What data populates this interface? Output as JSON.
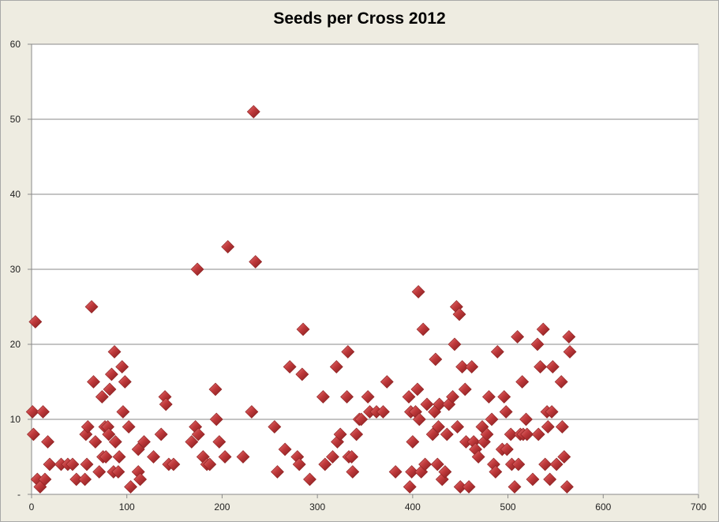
{
  "chart_data": {
    "type": "scatter",
    "title": "Seeds per Cross 2012",
    "xlabel": "",
    "ylabel": "",
    "xlim": [
      0,
      700
    ],
    "ylim": [
      0,
      60
    ],
    "x_ticks": [
      0,
      100,
      200,
      300,
      400,
      500,
      600,
      700
    ],
    "y_ticks": [
      0,
      10,
      20,
      30,
      40,
      50,
      60
    ],
    "y_tick_labels": [
      "-",
      "10",
      "20",
      "30",
      "40",
      "50",
      "60"
    ],
    "grid": "horizontal",
    "legend": "none",
    "marker": "diamond",
    "marker_color": "#c0393b",
    "plot_background": "#ffffff",
    "points": [
      [
        1,
        11
      ],
      [
        2,
        8
      ],
      [
        4,
        23
      ],
      [
        6,
        2
      ],
      [
        9,
        1
      ],
      [
        12,
        11
      ],
      [
        14,
        2
      ],
      [
        17,
        7
      ],
      [
        19,
        4
      ],
      [
        31,
        4
      ],
      [
        38,
        4
      ],
      [
        43,
        4
      ],
      [
        47,
        2
      ],
      [
        56,
        2
      ],
      [
        57,
        8
      ],
      [
        58,
        4
      ],
      [
        59,
        9
      ],
      [
        63,
        25
      ],
      [
        65,
        15
      ],
      [
        67,
        7
      ],
      [
        71,
        3
      ],
      [
        74,
        13
      ],
      [
        75,
        5
      ],
      [
        77,
        9
      ],
      [
        78,
        5
      ],
      [
        80,
        9
      ],
      [
        81,
        8
      ],
      [
        82,
        14
      ],
      [
        84,
        16
      ],
      [
        86,
        3
      ],
      [
        87,
        19
      ],
      [
        88,
        7
      ],
      [
        91,
        3
      ],
      [
        92,
        5
      ],
      [
        95,
        17
      ],
      [
        96,
        11
      ],
      [
        98,
        15
      ],
      [
        102,
        9
      ],
      [
        104,
        1
      ],
      [
        112,
        6
      ],
      [
        112,
        3
      ],
      [
        114,
        2
      ],
      [
        118,
        7
      ],
      [
        128,
        5
      ],
      [
        136,
        8
      ],
      [
        140,
        13
      ],
      [
        141,
        12
      ],
      [
        144,
        4
      ],
      [
        149,
        4
      ],
      [
        168,
        7
      ],
      [
        172,
        9
      ],
      [
        174,
        30
      ],
      [
        175,
        8
      ],
      [
        180,
        5
      ],
      [
        184,
        4
      ],
      [
        187,
        4
      ],
      [
        193,
        14
      ],
      [
        194,
        10
      ],
      [
        197,
        7
      ],
      [
        203,
        5
      ],
      [
        206,
        33
      ],
      [
        222,
        5
      ],
      [
        231,
        11
      ],
      [
        233,
        51
      ],
      [
        235,
        31
      ],
      [
        255,
        9
      ],
      [
        258,
        3
      ],
      [
        266,
        6
      ],
      [
        271,
        17
      ],
      [
        279,
        5
      ],
      [
        281,
        4
      ],
      [
        284,
        16
      ],
      [
        285,
        22
      ],
      [
        292,
        2
      ],
      [
        306,
        13
      ],
      [
        308,
        4
      ],
      [
        316,
        5
      ],
      [
        320,
        17
      ],
      [
        321,
        7
      ],
      [
        324,
        8
      ],
      [
        331,
        13
      ],
      [
        332,
        19
      ],
      [
        333,
        5
      ],
      [
        336,
        5
      ],
      [
        337,
        3
      ],
      [
        341,
        8
      ],
      [
        344,
        10
      ],
      [
        346,
        10
      ],
      [
        353,
        13
      ],
      [
        355,
        11
      ],
      [
        362,
        11
      ],
      [
        369,
        11
      ],
      [
        373,
        15
      ],
      [
        382,
        3
      ],
      [
        396,
        13
      ],
      [
        397,
        1
      ],
      [
        398,
        11
      ],
      [
        399,
        3
      ],
      [
        400,
        7
      ],
      [
        403,
        11
      ],
      [
        405,
        14
      ],
      [
        406,
        27
      ],
      [
        407,
        10
      ],
      [
        409,
        3
      ],
      [
        411,
        22
      ],
      [
        413,
        4
      ],
      [
        415,
        12
      ],
      [
        421,
        8
      ],
      [
        423,
        11
      ],
      [
        424,
        18
      ],
      [
        426,
        4
      ],
      [
        427,
        9
      ],
      [
        428,
        12
      ],
      [
        431,
        2
      ],
      [
        434,
        3
      ],
      [
        436,
        8
      ],
      [
        438,
        12
      ],
      [
        442,
        13
      ],
      [
        444,
        20
      ],
      [
        446,
        25
      ],
      [
        447,
        9
      ],
      [
        449,
        24
      ],
      [
        450,
        1
      ],
      [
        452,
        17
      ],
      [
        455,
        14
      ],
      [
        456,
        7
      ],
      [
        459,
        1
      ],
      [
        462,
        17
      ],
      [
        464,
        7
      ],
      [
        466,
        6
      ],
      [
        469,
        5
      ],
      [
        473,
        9
      ],
      [
        475,
        7
      ],
      [
        478,
        8
      ],
      [
        480,
        13
      ],
      [
        483,
        10
      ],
      [
        485,
        4
      ],
      [
        487,
        3
      ],
      [
        489,
        19
      ],
      [
        494,
        6
      ],
      [
        496,
        13
      ],
      [
        498,
        11
      ],
      [
        499,
        6
      ],
      [
        503,
        8
      ],
      [
        504,
        4
      ],
      [
        507,
        1
      ],
      [
        510,
        21
      ],
      [
        511,
        4
      ],
      [
        513,
        8
      ],
      [
        515,
        15
      ],
      [
        516,
        8
      ],
      [
        519,
        10
      ],
      [
        520,
        8
      ],
      [
        526,
        2
      ],
      [
        531,
        20
      ],
      [
        532,
        8
      ],
      [
        534,
        17
      ],
      [
        537,
        22
      ],
      [
        539,
        4
      ],
      [
        541,
        11
      ],
      [
        542,
        9
      ],
      [
        544,
        2
      ],
      [
        546,
        11
      ],
      [
        547,
        17
      ],
      [
        551,
        4
      ],
      [
        556,
        15
      ],
      [
        557,
        9
      ],
      [
        559,
        5
      ],
      [
        562,
        1
      ],
      [
        564,
        21
      ],
      [
        565,
        19
      ]
    ]
  }
}
